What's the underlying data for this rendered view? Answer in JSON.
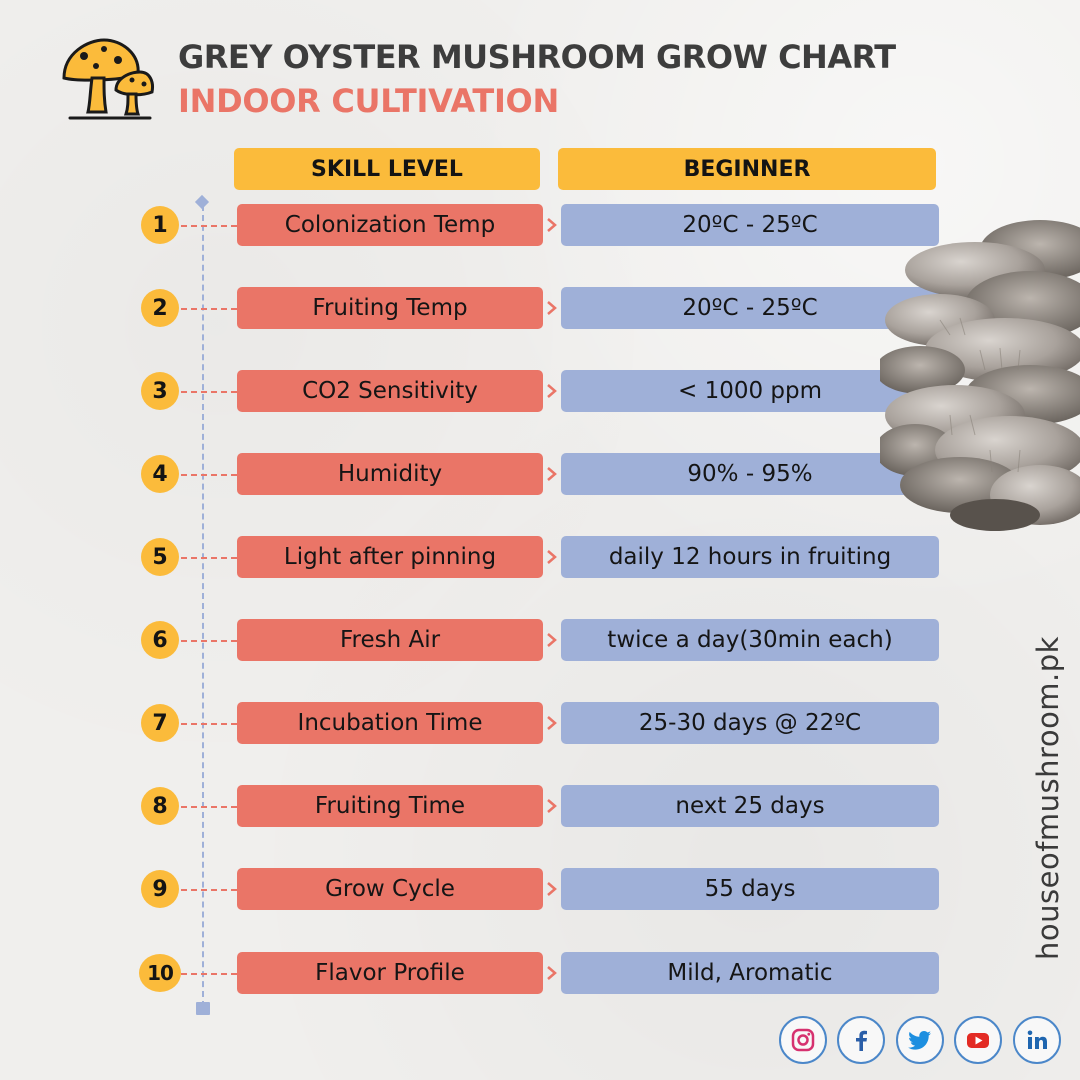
{
  "header": {
    "title": "GREY OYSTER MUSHROOM GROW CHART",
    "subtitle": "INDOOR CULTIVATION",
    "col_left": "SKILL LEVEL",
    "col_right": "BEGINNER"
  },
  "rows": [
    {
      "num": "1",
      "label": "Colonization Temp",
      "value": "20ºC - 25ºC"
    },
    {
      "num": "2",
      "label": "Fruiting Temp",
      "value": "20ºC - 25ºC"
    },
    {
      "num": "3",
      "label": "CO2 Sensitivity",
      "value": "< 1000 ppm"
    },
    {
      "num": "4",
      "label": "Humidity",
      "value": "90% - 95%"
    },
    {
      "num": "5",
      "label": "Light after pinning",
      "value": "daily 12 hours in fruiting"
    },
    {
      "num": "6",
      "label": "Fresh Air",
      "value": "twice a day(30min each)"
    },
    {
      "num": "7",
      "label": "Incubation Time",
      "value": "25-30 days @ 22ºC"
    },
    {
      "num": "8",
      "label": "Fruiting Time",
      "value": "next 25 days"
    },
    {
      "num": "9",
      "label": "Grow Cycle",
      "value": "55 days"
    },
    {
      "num": "10",
      "label": "Flavor Profile",
      "value": "Mild, Aromatic"
    }
  ],
  "brand": "houseofmushroom.pk",
  "social": [
    "instagram-icon",
    "facebook-icon",
    "twitter-icon",
    "youtube-icon",
    "linkedin-icon"
  ],
  "colors": {
    "accent_yellow": "#fbbb3b",
    "label_red": "#ea7567",
    "value_blue": "#9fb0d8",
    "title_dark": "#3d3d3d",
    "social_ring": "#4b87c9"
  }
}
